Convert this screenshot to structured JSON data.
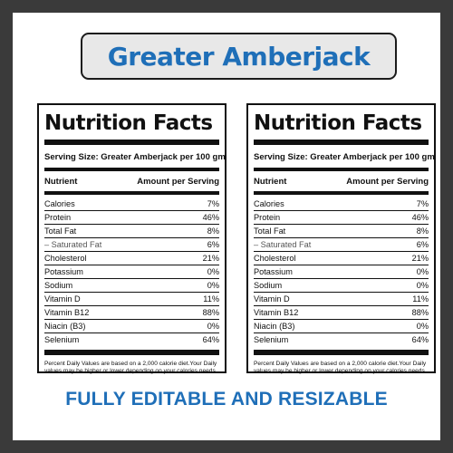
{
  "title": "Greater Amberjack",
  "tagline": "FULLY EDITABLE AND RESIZABLE",
  "panels": [
    {
      "heading": "Nutrition Facts",
      "serving": "Serving Size: Greater Amberjack per 100 gm",
      "col_nutrient": "Nutrient",
      "col_amount": "Amount per Serving",
      "rows": [
        {
          "name": "Calories",
          "value": "7%"
        },
        {
          "name": "Protein",
          "value": "46%"
        },
        {
          "name": "Total Fat",
          "value": "8%"
        },
        {
          "name": "– Saturated Fat",
          "value": "6%"
        },
        {
          "name": "Cholesterol",
          "value": "21%"
        },
        {
          "name": "Potassium",
          "value": "0%"
        },
        {
          "name": "Sodium",
          "value": "0%"
        },
        {
          "name": "Vitamin D",
          "value": "11%"
        },
        {
          "name": "Vitamin B12",
          "value": "88%"
        },
        {
          "name": "Niacin (B3)",
          "value": "0%"
        },
        {
          "name": "Selenium",
          "value": "64%"
        }
      ],
      "footnote": "Percent Daily Values are based on a 2,000 calorie diet.Your Daily values may be higher or lower depending on your calories needs"
    },
    {
      "heading": "Nutrition Facts",
      "serving": "Serving Size: Greater Amberjack per 100 gm",
      "col_nutrient": "Nutrient",
      "col_amount": "Amount per Serving",
      "rows": [
        {
          "name": "Calories",
          "value": "7%"
        },
        {
          "name": "Protein",
          "value": "46%"
        },
        {
          "name": "Total Fat",
          "value": "8%"
        },
        {
          "name": "– Saturated Fat",
          "value": "6%"
        },
        {
          "name": "Cholesterol",
          "value": "21%"
        },
        {
          "name": "Potassium",
          "value": "0%"
        },
        {
          "name": "Sodium",
          "value": "0%"
        },
        {
          "name": "Vitamin D",
          "value": "11%"
        },
        {
          "name": "Vitamin B12",
          "value": "88%"
        },
        {
          "name": "Niacin (B3)",
          "value": "0%"
        },
        {
          "name": "Selenium",
          "value": "64%"
        }
      ],
      "footnote": "Percent Daily Values are based on a 2,000 calorie diet.Your Daily values may be higher or lower depending on your calories needs"
    }
  ]
}
